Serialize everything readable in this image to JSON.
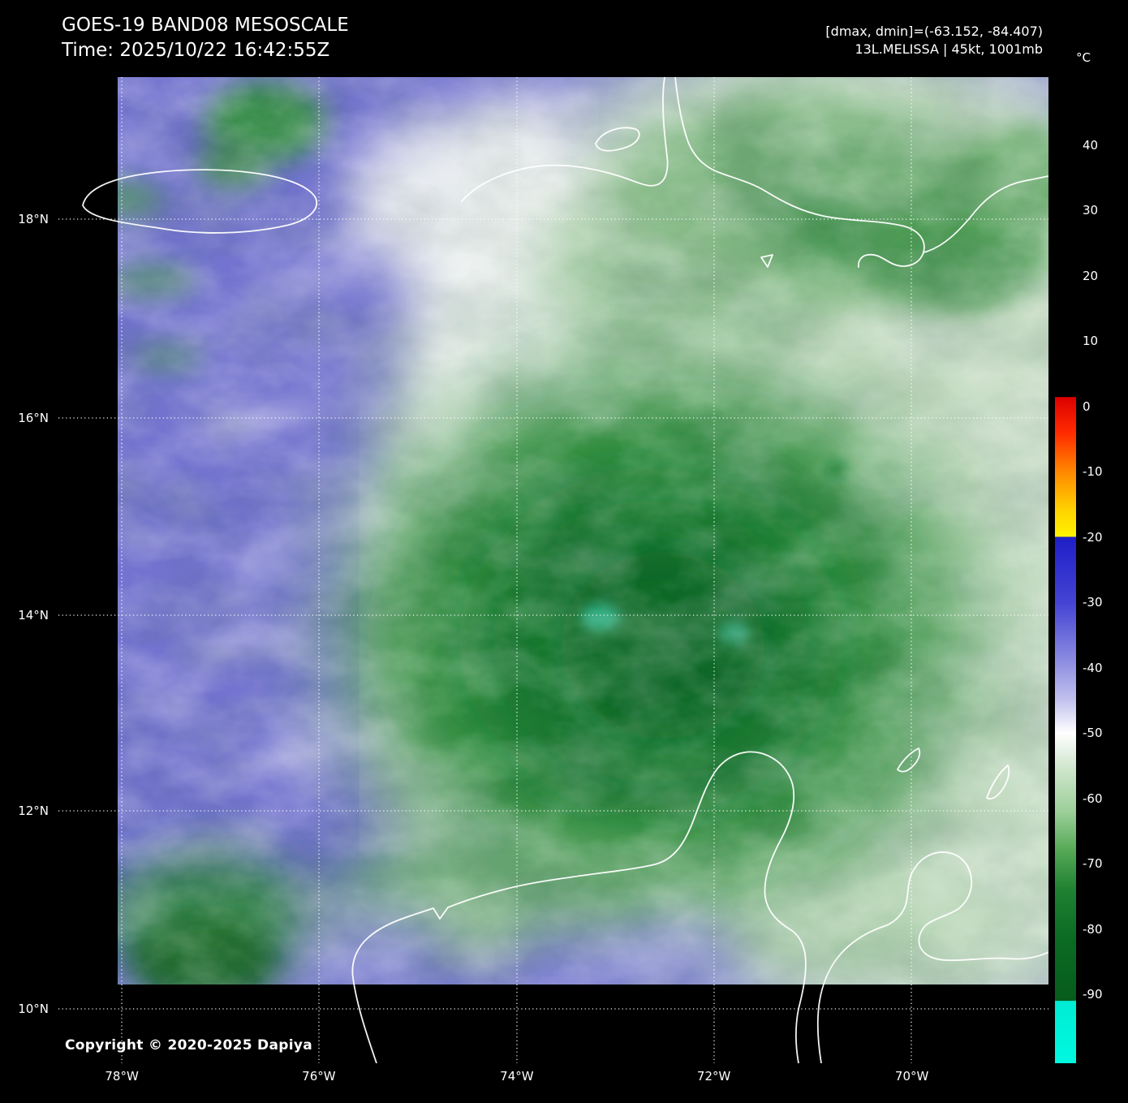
{
  "header": {
    "title": "GOES-19 BAND08 MESOSCALE",
    "time": "Time: 2025/10/22 16:42:55Z"
  },
  "info": {
    "range": "[dmax, dmin]=(-63.152, -84.407)",
    "storm": "13L.MELISSA | 45kt, 1001mb"
  },
  "colorbar": {
    "unit": "°C",
    "ticks": [
      40,
      30,
      20,
      10,
      0,
      -10,
      -20,
      -30,
      -40,
      -50,
      -60,
      -70,
      -80,
      -90
    ],
    "stops": [
      {
        "t": 50.4,
        "color": "#000000"
      },
      {
        "t": 1.5,
        "color": "#000000"
      },
      {
        "t": 1.4,
        "color": "#dc0000"
      },
      {
        "t": -4,
        "color": "#ff2a00"
      },
      {
        "t": -10,
        "color": "#ff8800"
      },
      {
        "t": -16,
        "color": "#ffd400"
      },
      {
        "t": -19.9,
        "color": "#fff200"
      },
      {
        "t": -20,
        "color": "#1e1ec8"
      },
      {
        "t": -30,
        "color": "#4444d4"
      },
      {
        "t": -38,
        "color": "#8484e0"
      },
      {
        "t": -45,
        "color": "#c2c2ee"
      },
      {
        "t": -50,
        "color": "#ffffff"
      },
      {
        "t": -55,
        "color": "#d2e7d0"
      },
      {
        "t": -62,
        "color": "#9ccf9a"
      },
      {
        "t": -68,
        "color": "#55a855"
      },
      {
        "t": -74,
        "color": "#1f8032"
      },
      {
        "t": -82,
        "color": "#0a6a22"
      },
      {
        "t": -90.9,
        "color": "#075c1c"
      },
      {
        "t": -91,
        "color": "#00ecd4"
      },
      {
        "t": -100.5,
        "color": "#00f8e0"
      }
    ]
  },
  "axes": {
    "lat": [
      "18°N",
      "16°N",
      "14°N",
      "12°N",
      "10°N"
    ],
    "lon": [
      "78°W",
      "76°W",
      "74°W",
      "72°W",
      "70°W"
    ]
  },
  "map": {
    "copyright": "Copyright © 2020-2025 Dapiya"
  },
  "colors": {
    "background": "#000000",
    "dry_air_blue": "#7474d0",
    "cold_cloud_pale_green": "#cde0cb",
    "cold_cloud_deep_green": "#0c6a25",
    "coastline": "#ffffff",
    "grid": "#ffffff",
    "text": "#ffffff"
  }
}
